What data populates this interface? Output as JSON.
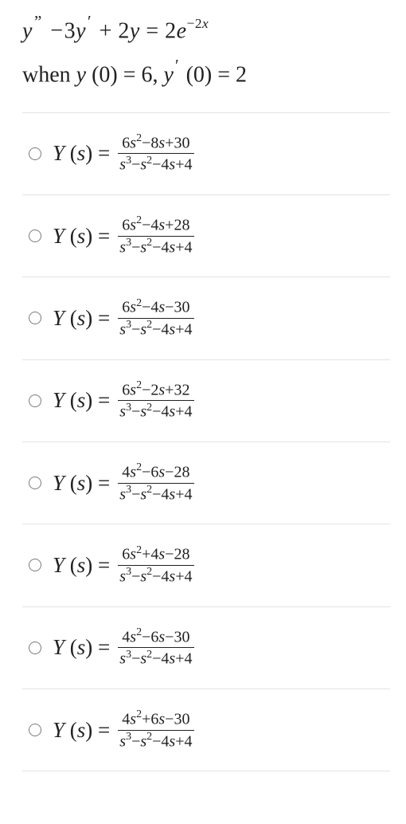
{
  "question": {
    "equation_parts": {
      "y": "y",
      "dquote": "”",
      "minus": "−",
      "three": "3",
      "yprime": "y",
      "prime": "′",
      "plus": "+",
      "two": "2",
      "eq": "=",
      "e": "e",
      "exp_neg": "−2",
      "exp_x": "x"
    },
    "condition_parts": {
      "when": "when ",
      "y": "y",
      "lp": "(",
      "zero": "0",
      "rp": ")",
      "eq": "=",
      "six": "6",
      "comma": ", ",
      "yprime": "y",
      "prime": "′",
      "two": "2"
    }
  },
  "lhs_parts": {
    "Y": "Y",
    "lp": "(",
    "s": "s",
    "rp": ")",
    "eq": " = "
  },
  "options": [
    {
      "num_a": "6",
      "num_b": "−8",
      "num_c": "+30",
      "den_a": "",
      "den_b": "−",
      "den_c": "−4",
      "den_d": "+4"
    },
    {
      "num_a": "6",
      "num_b": "−4",
      "num_c": "+28",
      "den_a": "",
      "den_b": "−",
      "den_c": "−4",
      "den_d": "+4"
    },
    {
      "num_a": "6",
      "num_b": "−4",
      "num_c": "−30",
      "den_a": "",
      "den_b": "−",
      "den_c": "−4",
      "den_d": "+4"
    },
    {
      "num_a": "6",
      "num_b": "−2",
      "num_c": "+32",
      "den_a": "",
      "den_b": "−",
      "den_c": "−4",
      "den_d": "+4"
    },
    {
      "num_a": "4",
      "num_b": "−6",
      "num_c": "−28",
      "den_a": "",
      "den_b": "−",
      "den_c": "−4",
      "den_d": "+4"
    },
    {
      "num_a": "6",
      "num_b": "+4",
      "num_c": "−28",
      "den_a": "",
      "den_b": "−",
      "den_c": "−4",
      "den_d": "+4"
    },
    {
      "num_a": "4",
      "num_b": "−6",
      "num_c": "−30",
      "den_a": "",
      "den_b": "−",
      "den_c": "−4",
      "den_d": "+4"
    },
    {
      "num_a": "4",
      "num_b": "+6",
      "num_c": "−30",
      "den_a": "",
      "den_b": "−",
      "den_c": "−4",
      "den_d": "+4"
    }
  ]
}
